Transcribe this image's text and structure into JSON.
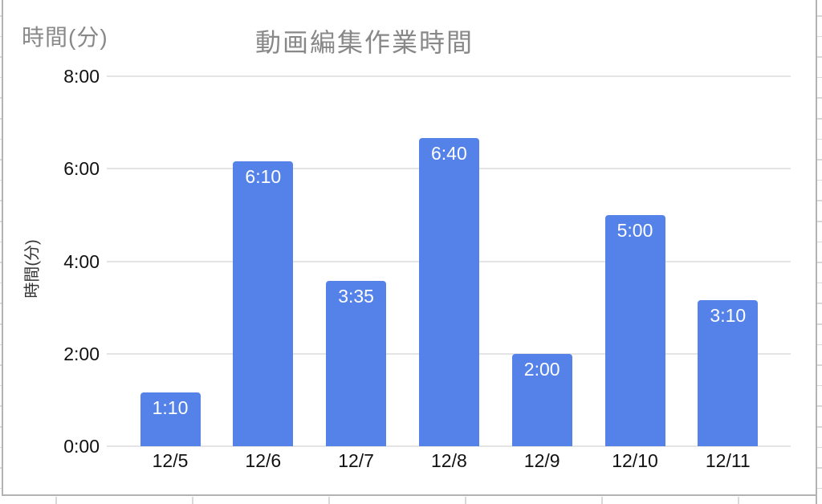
{
  "sheet": {
    "colors": {
      "edge_line": "#b3b3b3",
      "grid_line": "#d9d9d9"
    }
  },
  "chart_data": {
    "type": "bar",
    "title": "動画編集作業時間",
    "corner_label": "時間(分)",
    "ylabel": "時間(分)",
    "xlabel": "",
    "categories": [
      "12/5",
      "12/6",
      "12/7",
      "12/8",
      "12/9",
      "12/10",
      "12/11"
    ],
    "values": [
      "1:10",
      "6:10",
      "3:35",
      "6:40",
      "2:00",
      "5:00",
      "3:10"
    ],
    "values_minutes": [
      70,
      370,
      215,
      400,
      120,
      300,
      190
    ],
    "y_ticks": [
      "0:00",
      "2:00",
      "4:00",
      "6:00",
      "8:00"
    ],
    "ylim_minutes": [
      0,
      480
    ],
    "grid": true,
    "legend": "none",
    "colors": {
      "bar": "#5582E9",
      "value_label": "#ffffff",
      "title": "#888888",
      "axis_label": "#111111",
      "gridline": "#e4e4e4"
    }
  }
}
